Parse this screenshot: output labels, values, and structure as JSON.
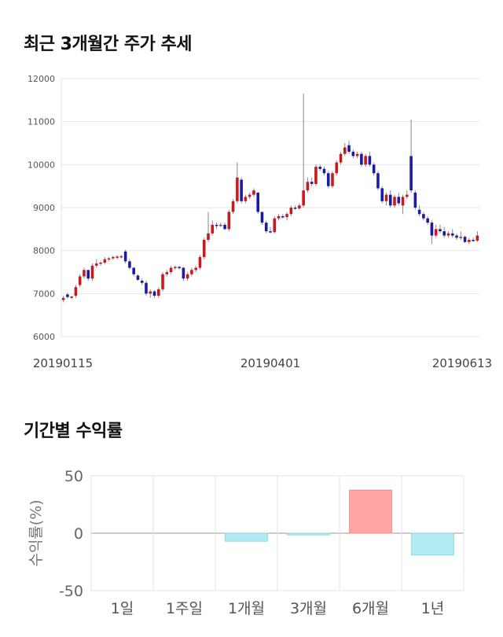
{
  "sections": {
    "price_title": "최근 3개월간 주가 추세",
    "returns_title": "기간별 수익률"
  },
  "chart_data": [
    {
      "type": "candlestick",
      "title": "최근 3개월간 주가 추세",
      "ylim": [
        6000,
        12000
      ],
      "y_ticks": [
        "12000",
        "11000",
        "10000",
        "9000",
        "8000",
        "7000",
        "6000"
      ],
      "x_tick_labels": [
        "20190115",
        "20190401",
        "20190613"
      ],
      "grid": true,
      "up_color": "#c8191c",
      "down_color": "#1a1aa6",
      "ohlc": [
        [
          6850,
          6950,
          6800,
          6900
        ],
        [
          6980,
          7020,
          6880,
          6920
        ],
        [
          6900,
          6950,
          6870,
          6930
        ],
        [
          6950,
          7200,
          6900,
          7150
        ],
        [
          7200,
          7450,
          7150,
          7400
        ],
        [
          7400,
          7600,
          7350,
          7550
        ],
        [
          7550,
          7500,
          7300,
          7350
        ],
        [
          7350,
          7700,
          7300,
          7650
        ],
        [
          7650,
          7800,
          7600,
          7700
        ],
        [
          7700,
          7750,
          7650,
          7720
        ],
        [
          7720,
          7850,
          7680,
          7800
        ],
        [
          7800,
          7850,
          7750,
          7820
        ],
        [
          7820,
          7880,
          7780,
          7850
        ],
        [
          7850,
          7900,
          7800,
          7860
        ],
        [
          7860,
          7900,
          7820,
          7870
        ],
        [
          7980,
          8020,
          7700,
          7750
        ],
        [
          7750,
          7800,
          7550,
          7600
        ],
        [
          7600,
          7620,
          7400,
          7450
        ],
        [
          7420,
          7450,
          7300,
          7320
        ],
        [
          7300,
          7350,
          7200,
          7250
        ],
        [
          7250,
          7300,
          6950,
          7000
        ],
        [
          7000,
          7100,
          6900,
          7050
        ],
        [
          7050,
          7080,
          6900,
          6950
        ],
        [
          6950,
          7150,
          6900,
          7100
        ],
        [
          7100,
          7500,
          7050,
          7450
        ],
        [
          7450,
          7550,
          7400,
          7500
        ],
        [
          7500,
          7650,
          7450,
          7600
        ],
        [
          7600,
          7650,
          7550,
          7620
        ],
        [
          7620,
          7650,
          7560,
          7600
        ],
        [
          7600,
          7620,
          7300,
          7350
        ],
        [
          7350,
          7500,
          7300,
          7450
        ],
        [
          7450,
          7600,
          7400,
          7550
        ],
        [
          7550,
          7650,
          7500,
          7600
        ],
        [
          7600,
          7900,
          7550,
          7850
        ],
        [
          7850,
          8300,
          7800,
          8250
        ],
        [
          8250,
          8900,
          8200,
          8400
        ],
        [
          8400,
          8700,
          8350,
          8600
        ],
        [
          8600,
          8650,
          8500,
          8580
        ],
        [
          8580,
          8650,
          8550,
          8600
        ],
        [
          8600,
          8650,
          8480,
          8500
        ],
        [
          8500,
          8950,
          8450,
          8900
        ],
        [
          8900,
          9200,
          8850,
          9150
        ],
        [
          9150,
          10050,
          9100,
          9700
        ],
        [
          9650,
          9700,
          9100,
          9150
        ],
        [
          9150,
          9300,
          9100,
          9250
        ],
        [
          9250,
          9350,
          9200,
          9300
        ],
        [
          9300,
          9450,
          9250,
          9400
        ],
        [
          9350,
          9350,
          8850,
          8900
        ],
        [
          8900,
          8900,
          8600,
          8650
        ],
        [
          8650,
          8700,
          8400,
          8450
        ],
        [
          8450,
          8550,
          8400,
          8430
        ],
        [
          8430,
          8800,
          8400,
          8750
        ],
        [
          8750,
          8850,
          8700,
          8800
        ],
        [
          8800,
          8850,
          8750,
          8780
        ],
        [
          8780,
          8900,
          8700,
          8850
        ],
        [
          8850,
          9050,
          8800,
          9000
        ],
        [
          9000,
          9050,
          8950,
          8980
        ],
        [
          8980,
          9100,
          8950,
          9050
        ],
        [
          9050,
          11650,
          9000,
          9400
        ],
        [
          9400,
          9700,
          9350,
          9600
        ],
        [
          9600,
          9700,
          9500,
          9550
        ],
        [
          9550,
          10000,
          9500,
          9950
        ],
        [
          9950,
          10000,
          9850,
          9900
        ],
        [
          9900,
          9950,
          9750,
          9800
        ],
        [
          9800,
          9850,
          9450,
          9500
        ],
        [
          9500,
          9850,
          9450,
          9800
        ],
        [
          9800,
          10100,
          9750,
          10050
        ],
        [
          10050,
          10300,
          10000,
          10250
        ],
        [
          10250,
          10500,
          10200,
          10400
        ],
        [
          10450,
          10550,
          10250,
          10300
        ],
        [
          10300,
          10350,
          10150,
          10200
        ],
        [
          10200,
          10300,
          10150,
          10250
        ],
        [
          10250,
          10300,
          9950,
          10000
        ],
        [
          10000,
          10250,
          9950,
          10200
        ],
        [
          10200,
          10300,
          9950,
          10000
        ],
        [
          10000,
          10050,
          9750,
          9800
        ],
        [
          9800,
          9850,
          9400,
          9450
        ],
        [
          9450,
          9500,
          9100,
          9150
        ],
        [
          9150,
          9350,
          9050,
          9300
        ],
        [
          9300,
          9400,
          9000,
          9050
        ],
        [
          9050,
          9300,
          9000,
          9250
        ],
        [
          9250,
          9350,
          9050,
          9100
        ],
        [
          9050,
          9300,
          8850,
          9250
        ],
        [
          9250,
          9400,
          9200,
          9300
        ],
        [
          10200,
          11050,
          9350,
          9400
        ],
        [
          9350,
          9400,
          8950,
          9000
        ],
        [
          8950,
          9050,
          8800,
          8850
        ],
        [
          8850,
          8900,
          8700,
          8750
        ],
        [
          8750,
          8800,
          8600,
          8650
        ],
        [
          8650,
          8700,
          8150,
          8350
        ],
        [
          8350,
          8600,
          8300,
          8500
        ],
        [
          8500,
          8600,
          8400,
          8450
        ],
        [
          8450,
          8550,
          8300,
          8350
        ],
        [
          8350,
          8450,
          8300,
          8400
        ],
        [
          8400,
          8500,
          8300,
          8350
        ],
        [
          8350,
          8400,
          8250,
          8300
        ],
        [
          8300,
          8450,
          8250,
          8320
        ],
        [
          8320,
          8350,
          8180,
          8200
        ],
        [
          8200,
          8300,
          8150,
          8250
        ],
        [
          8250,
          8300,
          8200,
          8230
        ],
        [
          8230,
          8450,
          8200,
          8350
        ]
      ]
    },
    {
      "type": "bar",
      "title": "기간별 수익률",
      "ylabel": "수익률(%)",
      "ylim": [
        -50,
        50
      ],
      "y_ticks": [
        "50",
        "0",
        "-50"
      ],
      "categories": [
        "1일",
        "1주일",
        "1개월",
        "3개월",
        "6개월",
        "1년"
      ],
      "values": [
        0,
        0,
        -7.0,
        -1.5,
        37.5,
        -19.0
      ],
      "positive_color": "#ffa5a5",
      "negative_color": "#b2ebf2",
      "grid": true
    }
  ]
}
